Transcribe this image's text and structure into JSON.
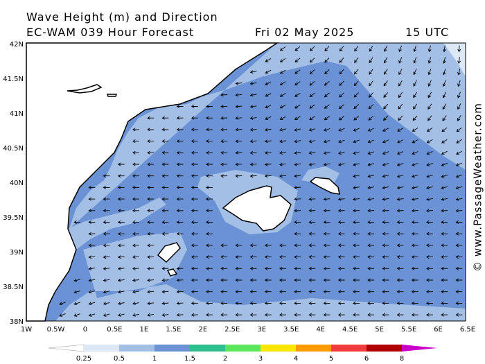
{
  "header": {
    "title": "Wave Height (m) and Direction",
    "forecast": "EC-WAM 039 Hour Forecast",
    "date": "Fri 02 May 2025",
    "time": "15 UTC"
  },
  "x_axis": {
    "labels": [
      "1W",
      "0.5W",
      "0",
      "0.5E",
      "1E",
      "1.5E",
      "2E",
      "2.5E",
      "3E",
      "3.5E",
      "4E",
      "4.5E",
      "5E",
      "5.5E",
      "6E",
      "6.5E"
    ]
  },
  "y_axis": {
    "labels": [
      "42N",
      "41.5N",
      "41N",
      "40.5N",
      "40N",
      "39.5N",
      "39N",
      "38.5N",
      "38N"
    ]
  },
  "legend": {
    "labels": [
      "0.25",
      "0.5",
      "1",
      "1.5",
      "2",
      "3",
      "4",
      "5",
      "6",
      "8"
    ],
    "colors": [
      "#ffffff",
      "#dde8f7",
      "#a4bfe6",
      "#6a92d4",
      "#2ebf8f",
      "#5ce65c",
      "#ffe600",
      "#ff9900",
      "#f03c3c",
      "#b00000",
      "#c800c8"
    ]
  },
  "credit": "© www.PassageWeather.com"
}
